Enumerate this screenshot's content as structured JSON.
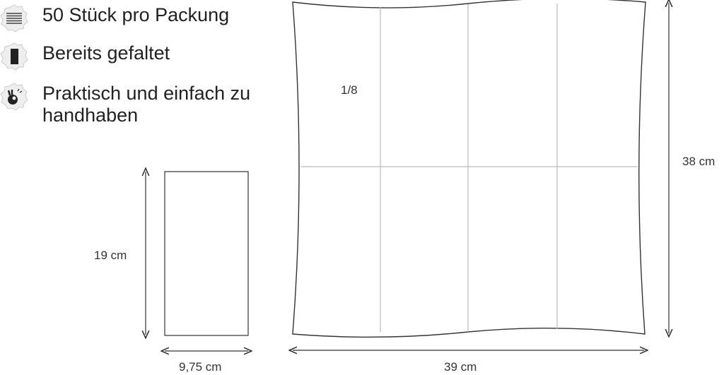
{
  "features": [
    {
      "icon": "stack-lines-icon",
      "text": "50 Stück pro Packung"
    },
    {
      "icon": "folded-napkin-icon",
      "text": "Bereits gefaltet"
    },
    {
      "icon": "ok-hand-icon",
      "text": "Praktisch und einfach zu handhaben"
    }
  ],
  "diagram": {
    "folded_height": "19 cm",
    "folded_width": "9,75 cm",
    "open_width": "39 cm",
    "open_height": "38 cm",
    "fold_fraction": "1/8"
  },
  "colors": {
    "line": "#333333",
    "fold": "#bbbbbb",
    "badge": "#eeeeee"
  }
}
